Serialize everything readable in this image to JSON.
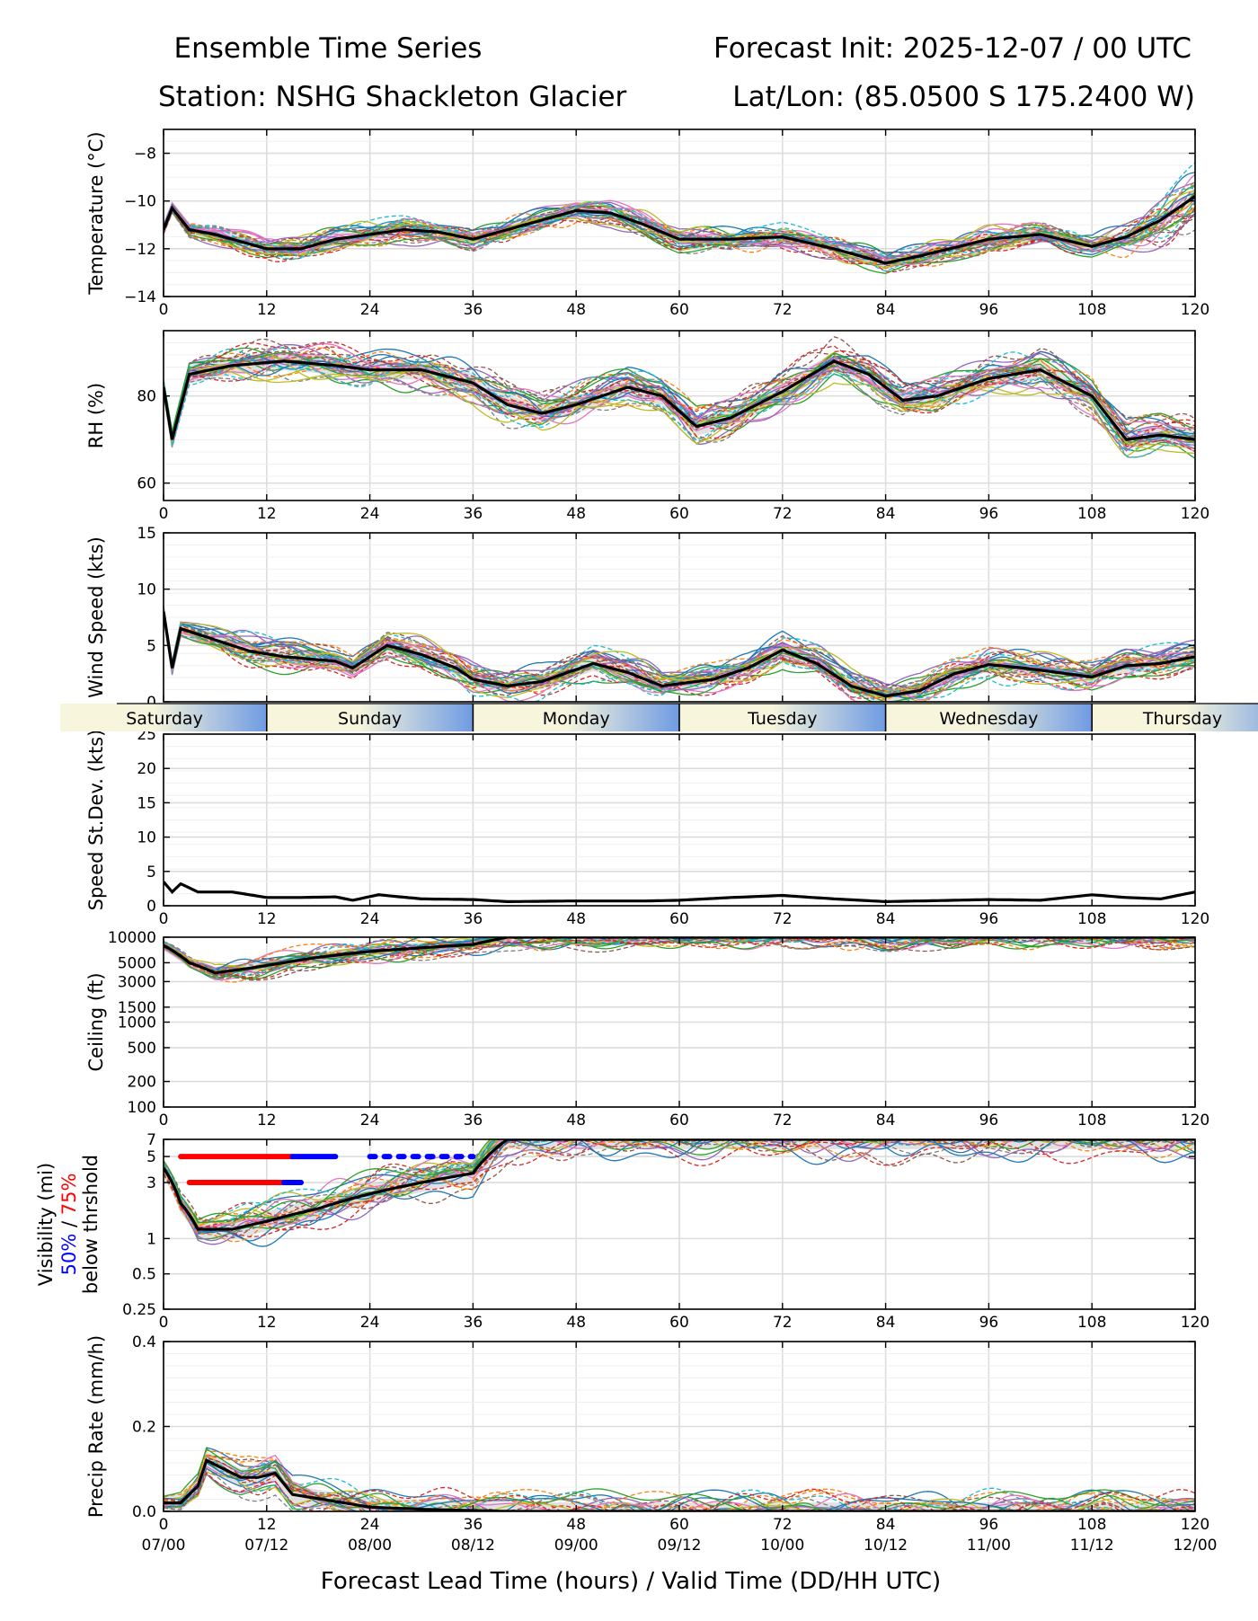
{
  "header": {
    "title_left": "Ensemble Time Series",
    "title_right": "Forecast Init: 2025-12-07 / 00 UTC",
    "station": "Station: NSHG Shackleton Glacier",
    "latlon": "Lat/Lon: (85.0500 S 175.2400 W)"
  },
  "colors": {
    "mean": "#000000",
    "spread_fill": "#bdbdbd",
    "grid": "#dcdcdc",
    "vis50": "#0000ff",
    "vis75": "#ff0000",
    "day_band_light": "#f7f5dc",
    "day_band_blue": "#6f9be3",
    "members": [
      "#1f77b4",
      "#ff7f0e",
      "#2ca02c",
      "#d62728",
      "#9467bd",
      "#8c564b",
      "#e377c2",
      "#7f7f7f",
      "#bcbd22",
      "#17becf"
    ]
  },
  "x_axis": {
    "lead_hours": [
      0,
      12,
      24,
      36,
      48,
      60,
      72,
      84,
      96,
      108,
      120
    ],
    "valid_time_labels": [
      "07/00",
      "07/12",
      "08/00",
      "08/12",
      "09/00",
      "09/12",
      "10/00",
      "10/12",
      "11/00",
      "11/12",
      "12/00"
    ],
    "xlabel": "Forecast Lead Time (hours) / Valid Time (DD/HH UTC)",
    "xlim": [
      0,
      120
    ]
  },
  "day_band": [
    "Saturday",
    "Sunday",
    "Monday",
    "Tuesday",
    "Wednesday",
    "Thursday"
  ],
  "chart_data": [
    {
      "type": "line",
      "id": "temperature",
      "ylabel": "Temperature (°C)",
      "ylim": [
        -14,
        -7
      ],
      "yticks": [
        -14,
        -12,
        -10,
        -8
      ],
      "ytick_labels": [
        "−14",
        "−12",
        "−10",
        "−8"
      ],
      "ylog": false,
      "member_count": 30,
      "member_jitter": 0.45,
      "mean": [
        [
          0,
          -11.2
        ],
        [
          1,
          -10.3
        ],
        [
          3,
          -11.2
        ],
        [
          6,
          -11.4
        ],
        [
          12,
          -12.0
        ],
        [
          16,
          -12.0
        ],
        [
          20,
          -11.6
        ],
        [
          24,
          -11.4
        ],
        [
          28,
          -11.2
        ],
        [
          32,
          -11.3
        ],
        [
          36,
          -11.6
        ],
        [
          42,
          -11.0
        ],
        [
          48,
          -10.4
        ],
        [
          52,
          -10.5
        ],
        [
          56,
          -11.0
        ],
        [
          60,
          -11.6
        ],
        [
          66,
          -11.6
        ],
        [
          72,
          -11.5
        ],
        [
          78,
          -12.0
        ],
        [
          84,
          -12.6
        ],
        [
          88,
          -12.3
        ],
        [
          96,
          -11.6
        ],
        [
          102,
          -11.4
        ],
        [
          108,
          -11.9
        ],
        [
          112,
          -11.5
        ],
        [
          116,
          -10.8
        ],
        [
          120,
          -9.8
        ]
      ]
    },
    {
      "type": "line",
      "id": "rh",
      "ylabel": "RH (%)",
      "ylim": [
        56,
        95
      ],
      "yticks": [
        60,
        80
      ],
      "ytick_labels": [
        "60",
        "80"
      ],
      "ylog": false,
      "member_count": 30,
      "member_jitter": 3.5,
      "mean": [
        [
          0,
          82
        ],
        [
          1,
          70
        ],
        [
          3,
          85
        ],
        [
          8,
          87
        ],
        [
          14,
          88
        ],
        [
          20,
          87
        ],
        [
          24,
          86
        ],
        [
          30,
          86
        ],
        [
          36,
          83
        ],
        [
          40,
          78
        ],
        [
          44,
          76
        ],
        [
          48,
          78
        ],
        [
          54,
          82
        ],
        [
          58,
          80
        ],
        [
          62,
          73
        ],
        [
          66,
          75
        ],
        [
          72,
          81
        ],
        [
          78,
          88
        ],
        [
          82,
          85
        ],
        [
          86,
          79
        ],
        [
          90,
          80
        ],
        [
          96,
          84
        ],
        [
          102,
          86
        ],
        [
          108,
          80
        ],
        [
          112,
          70
        ],
        [
          116,
          71
        ],
        [
          120,
          70
        ]
      ]
    },
    {
      "type": "line",
      "id": "wind_speed",
      "ylabel": "Wind Speed (kts)",
      "ylim": [
        0,
        15
      ],
      "yticks": [
        0,
        5,
        10,
        15
      ],
      "ytick_labels": [
        "0",
        "5",
        "10",
        "15"
      ],
      "ylog": false,
      "member_count": 30,
      "member_jitter": 1.1,
      "mean": [
        [
          0,
          8
        ],
        [
          1,
          3
        ],
        [
          2,
          6.5
        ],
        [
          6,
          5.5
        ],
        [
          10,
          4.5
        ],
        [
          14,
          4.0
        ],
        [
          20,
          3.6
        ],
        [
          22,
          3.0
        ],
        [
          26,
          5.0
        ],
        [
          30,
          4.2
        ],
        [
          34,
          3.0
        ],
        [
          36,
          2.0
        ],
        [
          40,
          1.4
        ],
        [
          44,
          1.8
        ],
        [
          50,
          3.4
        ],
        [
          54,
          2.6
        ],
        [
          58,
          1.4
        ],
        [
          64,
          2.0
        ],
        [
          68,
          3.0
        ],
        [
          72,
          4.6
        ],
        [
          76,
          3.4
        ],
        [
          80,
          1.4
        ],
        [
          84,
          0.5
        ],
        [
          88,
          1.0
        ],
        [
          92,
          2.5
        ],
        [
          96,
          3.3
        ],
        [
          100,
          3.0
        ],
        [
          104,
          2.6
        ],
        [
          108,
          2.2
        ],
        [
          112,
          3.2
        ],
        [
          116,
          3.4
        ],
        [
          120,
          4.0
        ]
      ]
    },
    {
      "type": "line",
      "id": "speed_stdev",
      "ylabel": "Speed St.Dev. (kts)",
      "ylim": [
        0,
        25
      ],
      "yticks": [
        0,
        5,
        10,
        15,
        20,
        25
      ],
      "ytick_labels": [
        "0",
        "5",
        "10",
        "15",
        "20",
        "25"
      ],
      "ylog": false,
      "member_count": 0,
      "member_jitter": 0,
      "mean": [
        [
          0,
          3.5
        ],
        [
          1,
          2.0
        ],
        [
          2,
          3.2
        ],
        [
          4,
          2.0
        ],
        [
          8,
          2.0
        ],
        [
          12,
          1.2
        ],
        [
          16,
          1.2
        ],
        [
          20,
          1.3
        ],
        [
          22,
          0.8
        ],
        [
          25,
          1.6
        ],
        [
          30,
          1.0
        ],
        [
          36,
          0.9
        ],
        [
          40,
          0.6
        ],
        [
          48,
          0.7
        ],
        [
          56,
          0.7
        ],
        [
          60,
          0.8
        ],
        [
          66,
          1.2
        ],
        [
          72,
          1.5
        ],
        [
          78,
          1.0
        ],
        [
          84,
          0.6
        ],
        [
          96,
          0.9
        ],
        [
          102,
          0.8
        ],
        [
          108,
          1.6
        ],
        [
          112,
          1.2
        ],
        [
          116,
          1.0
        ],
        [
          120,
          2.0
        ]
      ]
    },
    {
      "type": "line",
      "id": "ceiling",
      "ylabel": "Ceiling (ft)",
      "ylim": [
        100,
        10000
      ],
      "yticks": [
        100,
        200,
        500,
        1000,
        1500,
        3000,
        5000,
        10000
      ],
      "ytick_labels": [
        "100",
        "200",
        "500",
        "1000",
        "1500",
        "3000",
        "5000",
        "10000"
      ],
      "ylog": true,
      "member_count": 24,
      "member_jitter": 0.25,
      "mean": [
        [
          0,
          8000
        ],
        [
          3,
          5000
        ],
        [
          6,
          3800
        ],
        [
          10,
          4300
        ],
        [
          14,
          5000
        ],
        [
          18,
          5800
        ],
        [
          24,
          6800
        ],
        [
          30,
          7500
        ],
        [
          36,
          8200
        ],
        [
          40,
          10000
        ],
        [
          120,
          10000
        ]
      ]
    },
    {
      "type": "line",
      "id": "visibility",
      "ylabel": "Visibility (mi)",
      "ylabel_50": "50%",
      "ylabel_sep": " / ",
      "ylabel_75": "75%",
      "ylabel_3": "below thrshold",
      "ylim": [
        0.25,
        7
      ],
      "yticks": [
        0.25,
        0.5,
        1,
        3,
        5,
        7
      ],
      "ytick_labels": [
        "0.25",
        "0.5",
        "1",
        "3",
        "5",
        "7"
      ],
      "ylog": true,
      "member_count": 24,
      "member_jitter": 0.32,
      "mean": [
        [
          0,
          4
        ],
        [
          2,
          2.0
        ],
        [
          4,
          1.2
        ],
        [
          8,
          1.2
        ],
        [
          12,
          1.4
        ],
        [
          18,
          1.8
        ],
        [
          24,
          2.4
        ],
        [
          30,
          3.0
        ],
        [
          36,
          3.6
        ],
        [
          40,
          7
        ],
        [
          120,
          7
        ]
      ],
      "threshold_bars": [
        {
          "label": "75% below 5 mi",
          "color": "#ff0000",
          "y": 5,
          "x_start": 2,
          "x_end": 15
        },
        {
          "label": "50% below 5 mi",
          "color": "#0000ff",
          "y": 5,
          "x_start": 15,
          "x_end": 20
        },
        {
          "label": "50% below 5 mi (intermittent)",
          "color": "#0000ff",
          "y": 5,
          "x_start": 24,
          "x_end": 36,
          "dashed": true
        },
        {
          "label": "75% below 3 mi",
          "color": "#ff0000",
          "y": 3,
          "x_start": 3,
          "x_end": 14
        },
        {
          "label": "50% below 3 mi",
          "color": "#0000ff",
          "y": 3,
          "x_start": 14,
          "x_end": 16
        }
      ]
    },
    {
      "type": "line",
      "id": "precip_rate",
      "ylabel": "Precip Rate (mm/h)",
      "ylim": [
        0,
        0.4
      ],
      "yticks": [
        0.0,
        0.2,
        0.4
      ],
      "ytick_labels": [
        "0.0",
        "0.2",
        "0.4"
      ],
      "ylog": false,
      "member_count": 24,
      "member_jitter": 0.035,
      "mean": [
        [
          0,
          0.02
        ],
        [
          2,
          0.02
        ],
        [
          4,
          0.06
        ],
        [
          5,
          0.12
        ],
        [
          7,
          0.1
        ],
        [
          9,
          0.08
        ],
        [
          11,
          0.08
        ],
        [
          13,
          0.09
        ],
        [
          15,
          0.04
        ],
        [
          18,
          0.03
        ],
        [
          24,
          0.01
        ],
        [
          30,
          0.005
        ],
        [
          36,
          0.002
        ],
        [
          40,
          0.0
        ],
        [
          120,
          0.0
        ]
      ]
    }
  ]
}
